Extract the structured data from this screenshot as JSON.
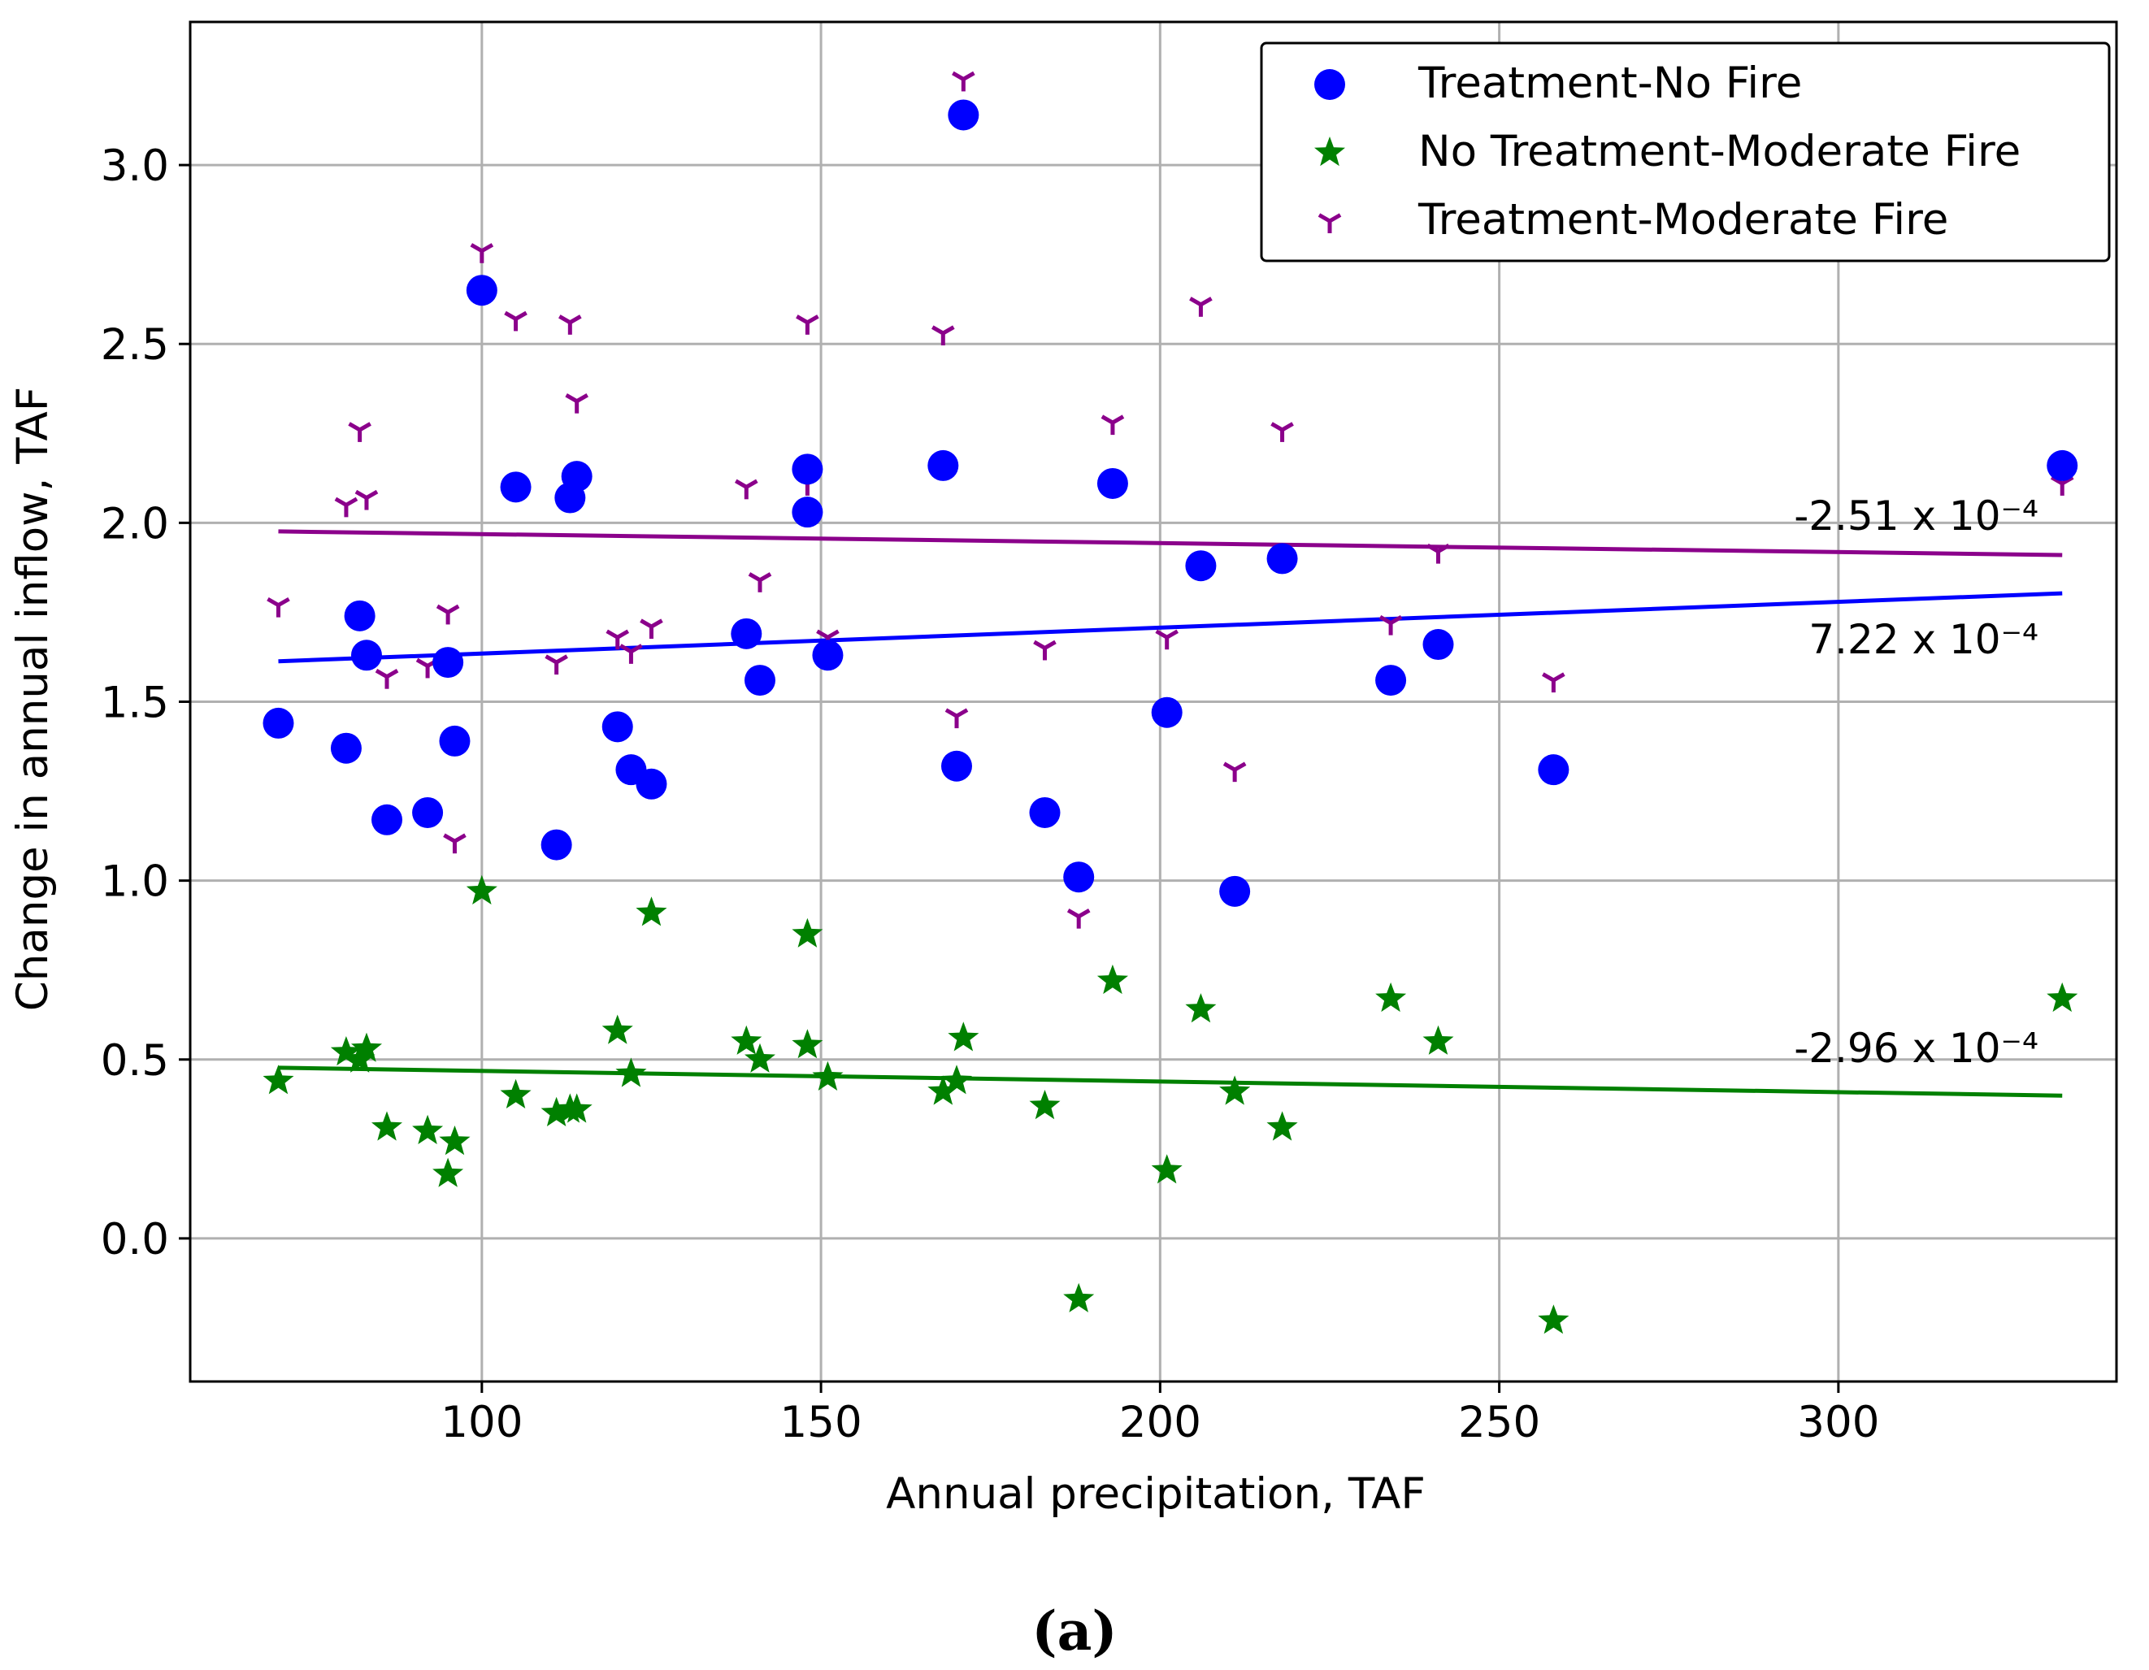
{
  "chart_data": {
    "type": "scatter",
    "xlabel": "Annual precipitation, TAF",
    "ylabel": "Change in annual inflow, TAF",
    "xlim": [
      57,
      341
    ],
    "ylim": [
      -0.4,
      3.4
    ],
    "x_ticks": [
      100,
      150,
      200,
      250,
      300
    ],
    "y_ticks": [
      0.0,
      0.5,
      1.0,
      1.5,
      2.0,
      2.5,
      3.0
    ],
    "x_tick_labels": [
      "100",
      "150",
      "200",
      "250",
      "300"
    ],
    "y_tick_labels": [
      "0.0",
      "0.5",
      "1.0",
      "1.5",
      "2.0",
      "2.5",
      "3.0"
    ],
    "grid": true,
    "legend_position": "top-right",
    "caption": "(a)",
    "series": [
      {
        "name": "Treatment-No Fire",
        "marker": "circle",
        "color": "#0000ff",
        "x": [
          70,
          80,
          82,
          83,
          86,
          92,
          95,
          96,
          100,
          105,
          111,
          113,
          114,
          120,
          122,
          125,
          139,
          141,
          148,
          148,
          151,
          168,
          170,
          171,
          183,
          188,
          193,
          201,
          206,
          211,
          218,
          234,
          241,
          258,
          333
        ],
        "y": [
          1.44,
          1.37,
          1.74,
          1.63,
          1.17,
          1.19,
          1.61,
          1.39,
          2.65,
          2.1,
          1.1,
          2.07,
          2.13,
          1.43,
          1.31,
          1.27,
          1.69,
          1.56,
          2.15,
          2.03,
          1.63,
          2.16,
          1.32,
          3.14,
          1.19,
          1.01,
          2.11,
          1.47,
          1.88,
          0.97,
          1.9,
          1.56,
          1.66,
          1.31,
          2.16
        ],
        "trend": {
          "x": [
            70,
            333
          ],
          "y": [
            1.613,
            1.803
          ]
        },
        "slope_label": "7.22 x 10⁻⁴"
      },
      {
        "name": "No Treatment-Moderate Fire",
        "marker": "star",
        "color": "#008000",
        "x": [
          70,
          80,
          82,
          83,
          86,
          92,
          95,
          96,
          100,
          105,
          111,
          113,
          114,
          120,
          122,
          125,
          139,
          141,
          148,
          148,
          151,
          168,
          170,
          171,
          183,
          188,
          193,
          201,
          206,
          211,
          218,
          234,
          241,
          258,
          333
        ],
        "y": [
          0.44,
          0.52,
          0.5,
          0.53,
          0.31,
          0.3,
          0.18,
          0.27,
          0.97,
          0.4,
          0.35,
          0.36,
          0.36,
          0.58,
          0.46,
          0.91,
          0.55,
          0.5,
          0.85,
          0.54,
          0.45,
          0.41,
          0.44,
          0.56,
          0.37,
          -0.17,
          0.72,
          0.19,
          0.64,
          0.41,
          0.31,
          0.67,
          0.55,
          -0.23,
          0.67
        ],
        "trend": {
          "x": [
            70,
            333
          ],
          "y": [
            0.477,
            0.399
          ]
        },
        "slope_label": "-2.96 x 10⁻⁴"
      },
      {
        "name": "Treatment-Moderate Fire",
        "marker": "tri_down",
        "color": "#8b008b",
        "x": [
          70,
          80,
          82,
          83,
          86,
          92,
          95,
          96,
          100,
          105,
          111,
          113,
          114,
          120,
          122,
          125,
          139,
          141,
          148,
          148,
          151,
          168,
          170,
          171,
          183,
          188,
          193,
          201,
          206,
          211,
          218,
          234,
          241,
          258,
          333
        ],
        "y": [
          1.77,
          2.05,
          2.26,
          2.07,
          1.57,
          1.6,
          1.75,
          1.11,
          2.76,
          2.57,
          1.61,
          2.56,
          2.34,
          1.68,
          1.64,
          1.71,
          2.1,
          1.84,
          2.56,
          2.11,
          1.68,
          2.53,
          1.46,
          3.24,
          1.65,
          0.9,
          2.28,
          1.68,
          2.61,
          1.31,
          2.26,
          1.72,
          1.92,
          1.56,
          2.11
        ],
        "trend": {
          "x": [
            70,
            333
          ],
          "y": [
            1.976,
            1.91
          ]
        },
        "slope_label": "-2.51 x 10⁻⁴"
      }
    ]
  }
}
